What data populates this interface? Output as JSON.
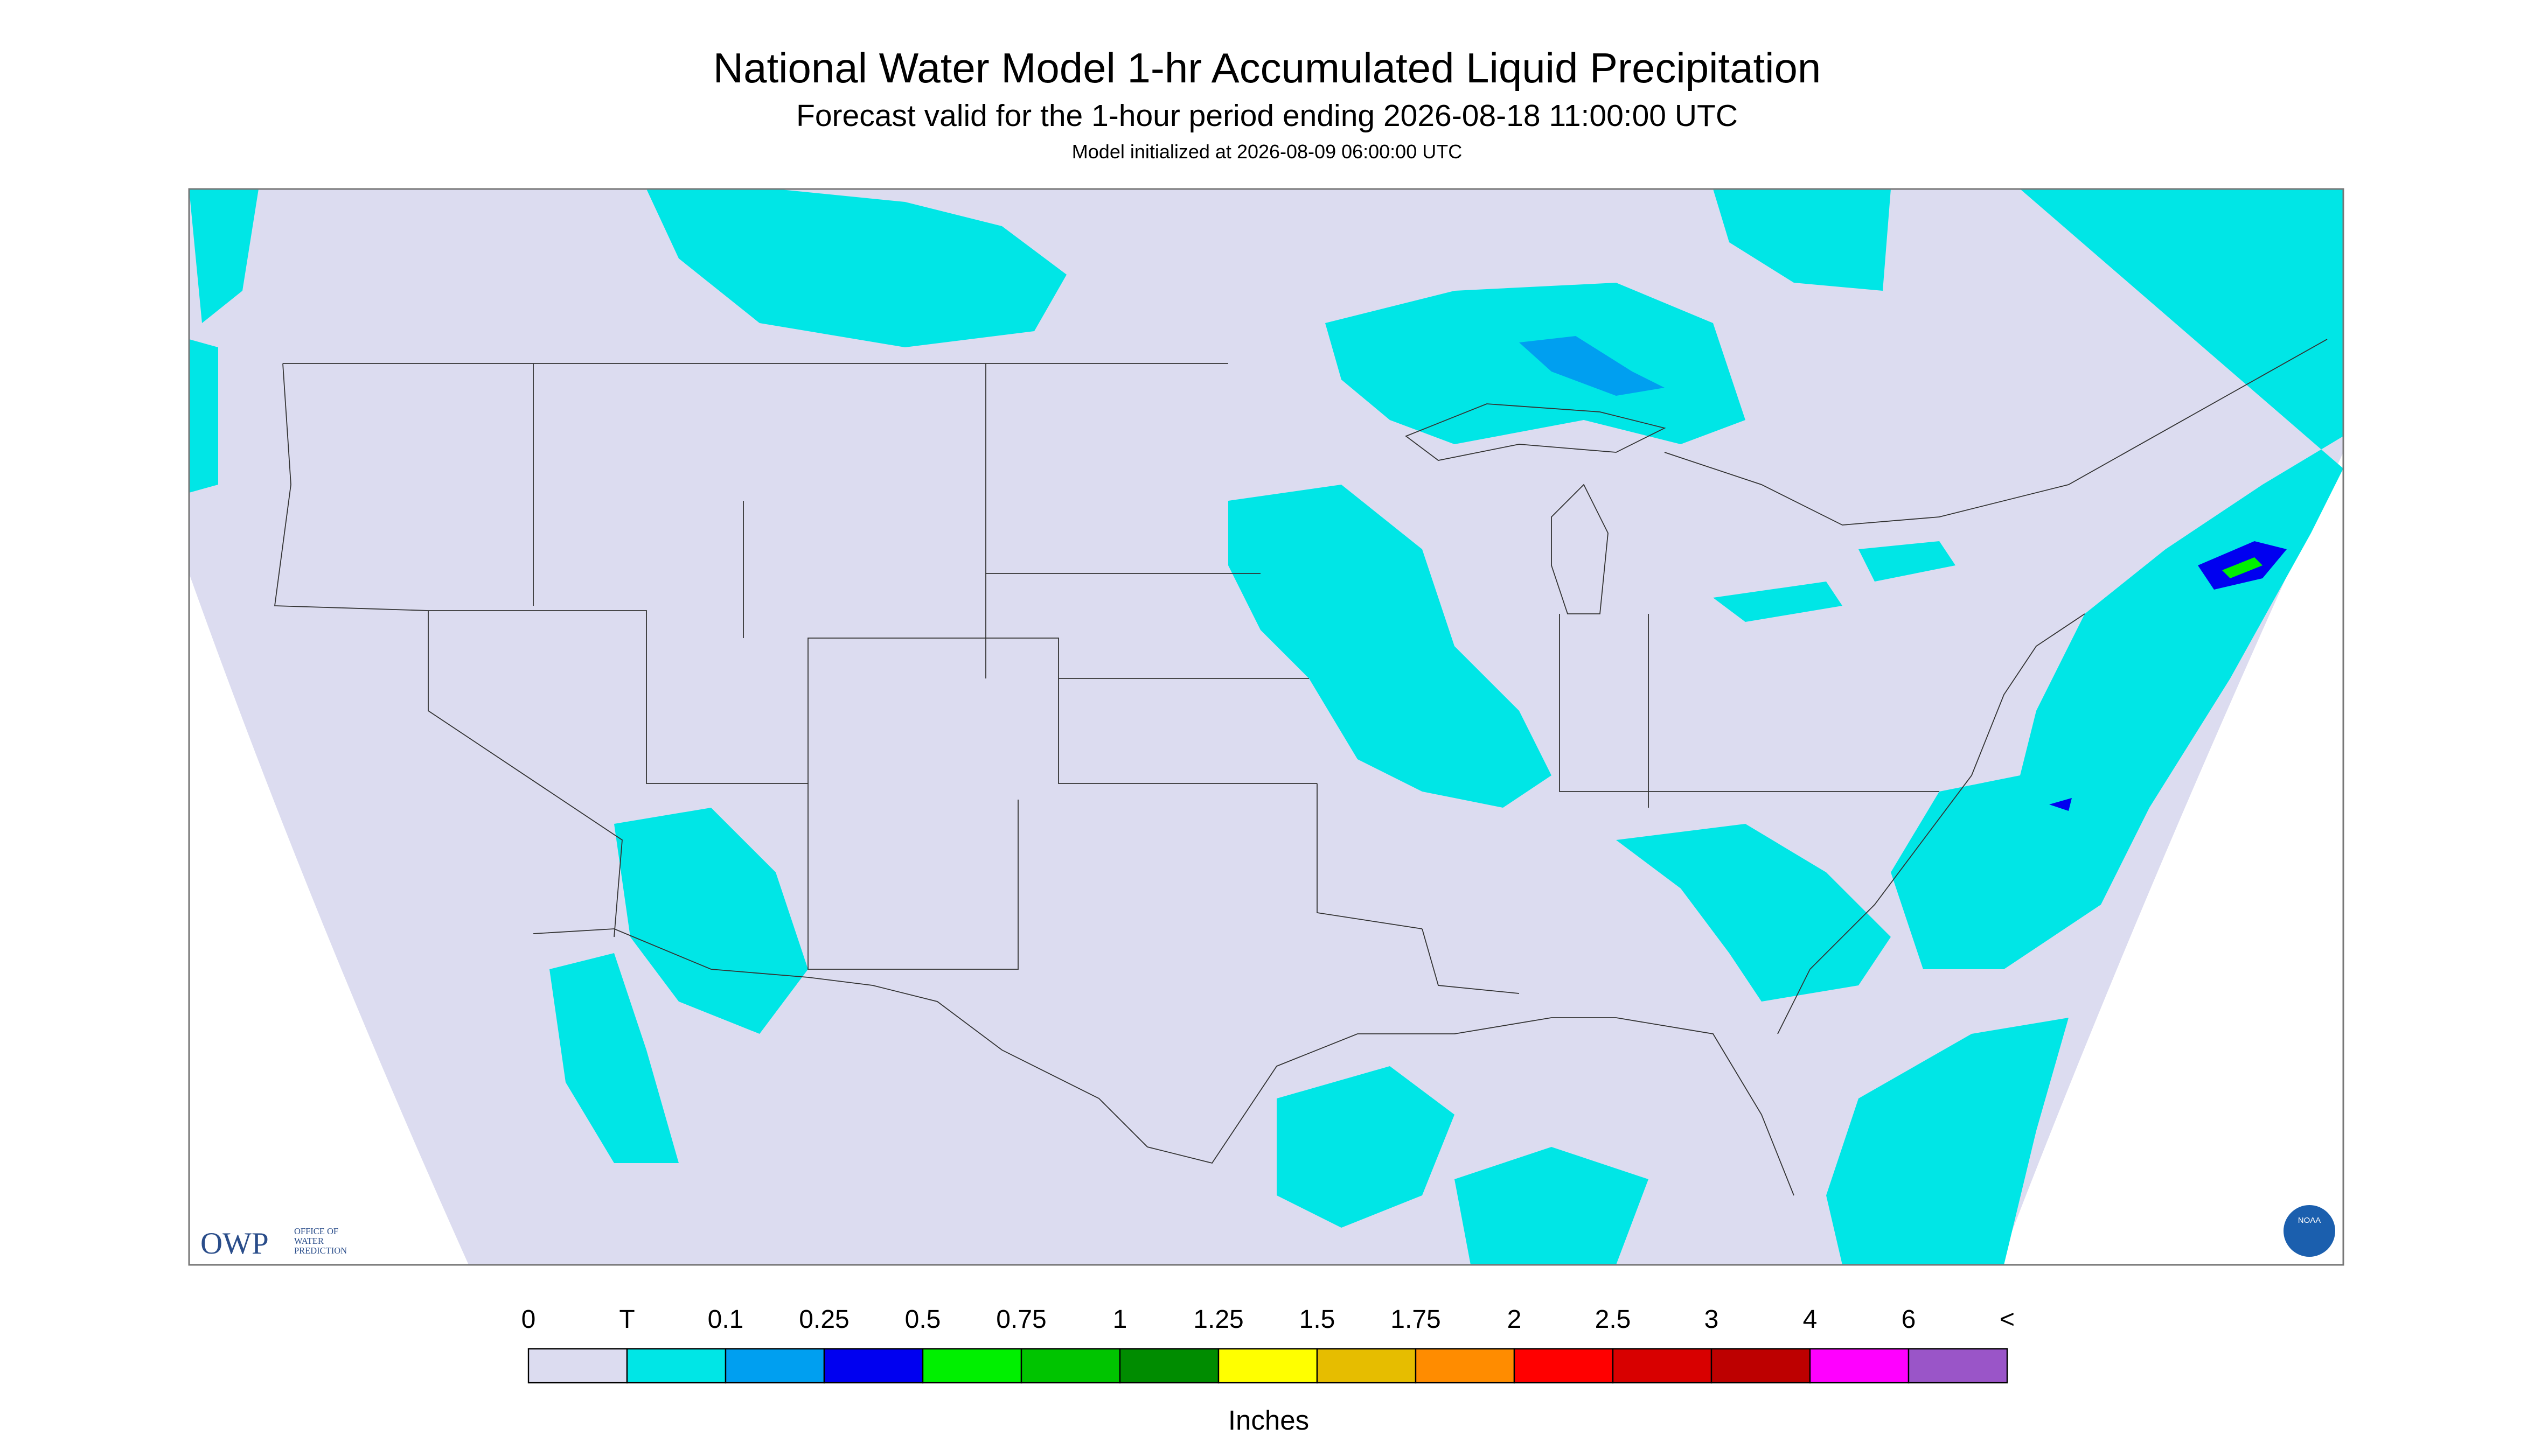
{
  "header": {
    "title": "National Water Model 1-hr Accumulated Liquid Precipitation",
    "subtitle": "Forecast valid for the 1-hour period ending 2026-08-18 11:00:00 UTC",
    "note": "Model initialized at 2026-08-09 06:00:00 UTC"
  },
  "logos": {
    "owp": "OWP",
    "owp_text": [
      "OFFICE OF",
      "WATER",
      "PREDICTION"
    ],
    "noaa": "NOAA"
  },
  "legend": {
    "labels": [
      "0",
      "T",
      "0.1",
      "0.25",
      "0.5",
      "0.75",
      "1",
      "1.25",
      "1.5",
      "1.75",
      "2",
      "2.5",
      "3",
      "4",
      "6",
      "<"
    ],
    "colors": [
      "#dcdcf0",
      "#00e6e6",
      "#009ff0",
      "#0000f0",
      "#00f000",
      "#00c400",
      "#008c00",
      "#ffff00",
      "#e6bd00",
      "#ff8c00",
      "#ff0000",
      "#d80000",
      "#bd0000",
      "#ff00ff",
      "#9a55c8"
    ],
    "unit": "Inches"
  }
}
